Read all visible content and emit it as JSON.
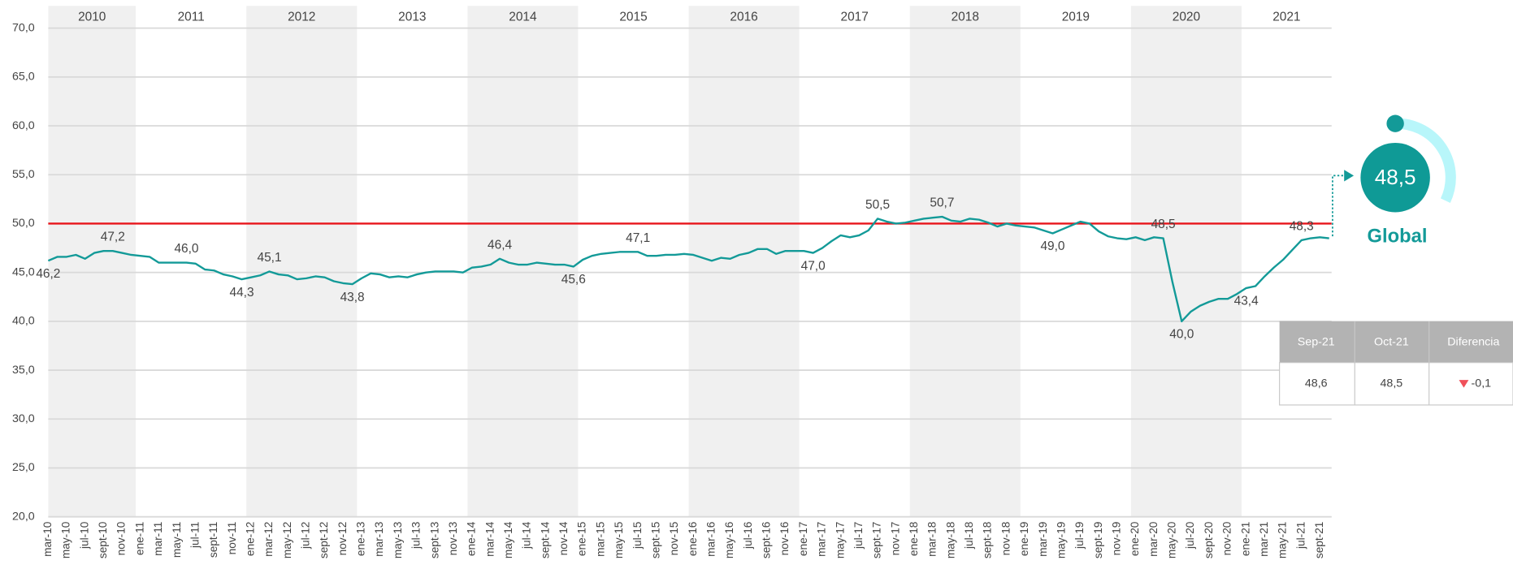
{
  "chart_data": {
    "type": "line",
    "years": [
      "2010",
      "2011",
      "2012",
      "2013",
      "2014",
      "2015",
      "2016",
      "2017",
      "2018",
      "2019",
      "2020",
      "2021"
    ],
    "categories": [
      "mar-10",
      null,
      "may-10",
      null,
      "jul-10",
      null,
      "sept-10",
      null,
      "nov-10",
      null,
      "ene-11",
      null,
      "mar-11",
      null,
      "may-11",
      null,
      "jul-11",
      null,
      "sept-11",
      null,
      "nov-11",
      null,
      "ene-12",
      null,
      "mar-12",
      null,
      "may-12",
      null,
      "jul-12",
      null,
      "sept-12",
      null,
      "nov-12",
      null,
      "ene-13",
      null,
      "mar-13",
      null,
      "may-13",
      null,
      "jul-13",
      null,
      "sept-13",
      null,
      "nov-13",
      null,
      "ene-14",
      null,
      "mar-14",
      null,
      "may-14",
      null,
      "jul-14",
      null,
      "sept-14",
      null,
      "nov-14",
      null,
      "ene-15",
      null,
      "mar-15",
      null,
      "may-15",
      null,
      "jul-15",
      null,
      "sept-15",
      null,
      "nov-15",
      null,
      "ene-16",
      null,
      "mar-16",
      null,
      "may-16",
      null,
      "jul-16",
      null,
      "sept-16",
      null,
      "nov-16",
      null,
      "ene-17",
      null,
      "mar-17",
      null,
      "may-17",
      null,
      "jul-17",
      null,
      "sept-17",
      null,
      "nov-17",
      null,
      "ene-18",
      null,
      "mar-18",
      null,
      "may-18",
      null,
      "jul-18",
      null,
      "sept-18",
      null,
      "nov-18",
      null,
      "ene-19",
      null,
      "mar-19",
      null,
      "may-19",
      null,
      "jul-19",
      null,
      "sept-19",
      null,
      "nov-19",
      null,
      "ene-20",
      null,
      "mar-20",
      null,
      "may-20",
      null,
      "jul-20",
      null,
      "sept-20",
      null,
      "nov-20",
      null,
      "ene-21",
      null,
      "mar-21",
      null,
      "may-21",
      null,
      "jul-21",
      null,
      "sept-21",
      null
    ],
    "series": [
      {
        "color": "#139a98",
        "values": [
          46.2,
          46.6,
          46.6,
          46.8,
          46.4,
          47.0,
          47.2,
          47.2,
          47.0,
          46.8,
          46.7,
          46.6,
          46.0,
          46.0,
          46.0,
          46.0,
          45.9,
          45.3,
          45.2,
          44.8,
          44.6,
          44.3,
          44.5,
          44.7,
          45.1,
          44.8,
          44.7,
          44.3,
          44.4,
          44.6,
          44.5,
          44.1,
          43.9,
          43.8,
          44.4,
          44.9,
          44.8,
          44.5,
          44.6,
          44.5,
          44.8,
          45.0,
          45.1,
          45.1,
          45.1,
          45.0,
          45.5,
          45.6,
          45.8,
          46.4,
          46.0,
          45.8,
          45.8,
          46.0,
          45.9,
          45.8,
          45.8,
          45.6,
          46.3,
          46.7,
          46.9,
          47.0,
          47.1,
          47.1,
          47.1,
          46.7,
          46.7,
          46.8,
          46.8,
          46.9,
          46.8,
          46.5,
          46.2,
          46.5,
          46.4,
          46.8,
          47.0,
          47.4,
          47.4,
          46.9,
          47.2,
          47.2,
          47.2,
          47.0,
          47.5,
          48.2,
          48.8,
          48.6,
          48.8,
          49.3,
          50.5,
          50.2,
          50.0,
          50.1,
          50.3,
          50.5,
          50.6,
          50.7,
          50.3,
          50.2,
          50.5,
          50.4,
          50.1,
          49.7,
          50.0,
          49.8,
          49.7,
          49.6,
          49.3,
          49.0,
          49.4,
          49.8,
          50.2,
          50.0,
          49.2,
          48.7,
          48.5,
          48.4,
          48.6,
          48.3,
          48.6,
          48.5,
          44.0,
          40.0,
          41.0,
          41.6,
          42.0,
          42.3,
          42.3,
          42.8,
          43.4,
          43.6,
          44.6,
          45.5,
          46.3,
          47.3,
          48.3,
          48.5,
          48.6,
          48.5
        ],
        "value_labels": [
          "46,2",
          null,
          null,
          null,
          null,
          null,
          null,
          "47,2",
          null,
          null,
          null,
          null,
          null,
          null,
          null,
          "46,0",
          null,
          null,
          null,
          null,
          null,
          "44,3",
          null,
          null,
          "45,1",
          null,
          null,
          null,
          null,
          null,
          null,
          null,
          null,
          "43,8",
          null,
          null,
          null,
          null,
          null,
          null,
          null,
          null,
          null,
          null,
          null,
          null,
          null,
          null,
          null,
          "46,4",
          null,
          null,
          null,
          null,
          null,
          null,
          null,
          "45,6",
          null,
          null,
          null,
          null,
          null,
          null,
          "47,1",
          null,
          null,
          null,
          null,
          null,
          null,
          null,
          null,
          null,
          null,
          null,
          null,
          null,
          null,
          null,
          null,
          null,
          null,
          "47,0",
          null,
          null,
          null,
          null,
          null,
          null,
          "50,5",
          null,
          null,
          null,
          null,
          null,
          null,
          "50,7",
          null,
          null,
          null,
          null,
          null,
          null,
          null,
          null,
          null,
          null,
          null,
          "49,0",
          null,
          null,
          null,
          null,
          null,
          null,
          null,
          null,
          null,
          null,
          null,
          "48,5",
          null,
          "40,0",
          null,
          null,
          null,
          null,
          null,
          null,
          "43,4",
          null,
          null,
          null,
          null,
          null,
          "48,3",
          null,
          null,
          null
        ]
      }
    ],
    "reference_line": {
      "value": 50,
      "color": "#e8141a"
    },
    "ylim": [
      20,
      70
    ],
    "yticks": [
      {
        "value": 20,
        "label": "20,0"
      },
      {
        "value": 25,
        "label": "25,0"
      },
      {
        "value": 30,
        "label": "30,0"
      },
      {
        "value": 35,
        "label": "35,0"
      },
      {
        "value": 40,
        "label": "40,0"
      },
      {
        "value": 45,
        "label": "45,0"
      },
      {
        "value": 50,
        "label": "50,0"
      },
      {
        "value": 55,
        "label": "55,0"
      },
      {
        "value": 60,
        "label": "60,0"
      },
      {
        "value": 65,
        "label": "65,0"
      },
      {
        "value": 70,
        "label": "70,0"
      }
    ],
    "grid": true
  },
  "global_indicator": {
    "value_label": "48,5",
    "name": "Global"
  },
  "comparison_table": {
    "headers": [
      "Sep-21",
      "Oct-21",
      "Diferencia"
    ],
    "rows": [
      [
        "48,6",
        "48,5",
        "-0,1"
      ]
    ]
  }
}
